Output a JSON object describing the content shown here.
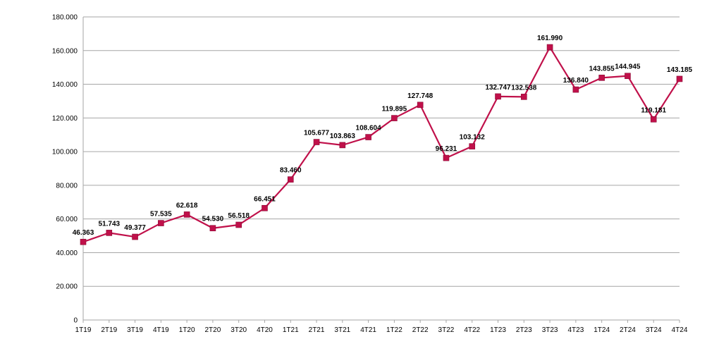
{
  "chart_data": {
    "type": "line",
    "title": "",
    "xlabel": "",
    "ylabel": "",
    "ylim": [
      0,
      180000
    ],
    "y_step": 20000,
    "grid": true,
    "legend": "none",
    "categories": [
      "1T19",
      "2T19",
      "3T19",
      "4T19",
      "1T20",
      "2T20",
      "3T20",
      "4T20",
      "1T21",
      "2T21",
      "3T21",
      "4T21",
      "1T22",
      "2T22",
      "3T22",
      "4T22",
      "1T23",
      "2T23",
      "3T23",
      "4T23",
      "1T24",
      "2T24",
      "3T24",
      "4T24"
    ],
    "y_tick_labels": [
      "0",
      "20.000",
      "40.000",
      "60.000",
      "80.000",
      "100.000",
      "120.000",
      "140.000",
      "160.000",
      "180.000"
    ],
    "series": [
      {
        "values": [
          46363,
          51743,
          49377,
          57535,
          62618,
          54530,
          56518,
          66451,
          83460,
          105677,
          103863,
          108604,
          119895,
          127748,
          96231,
          103132,
          132747,
          132538,
          161990,
          136840,
          143855,
          144945,
          119181,
          143185
        ],
        "labels": [
          "46.363",
          "51.743",
          "49.377",
          "57.535",
          "62.618",
          "54.530",
          "56.518",
          "66.451",
          "83.460",
          "105.677",
          "103.863",
          "108.604",
          "119.895",
          "127.748",
          "96.231",
          "103.132",
          "132.747",
          "132.538",
          "161.990",
          "136.840",
          "143.855",
          "144.945",
          "119.181",
          "143.185"
        ],
        "color": "#c0104a",
        "marker": "square"
      }
    ]
  }
}
